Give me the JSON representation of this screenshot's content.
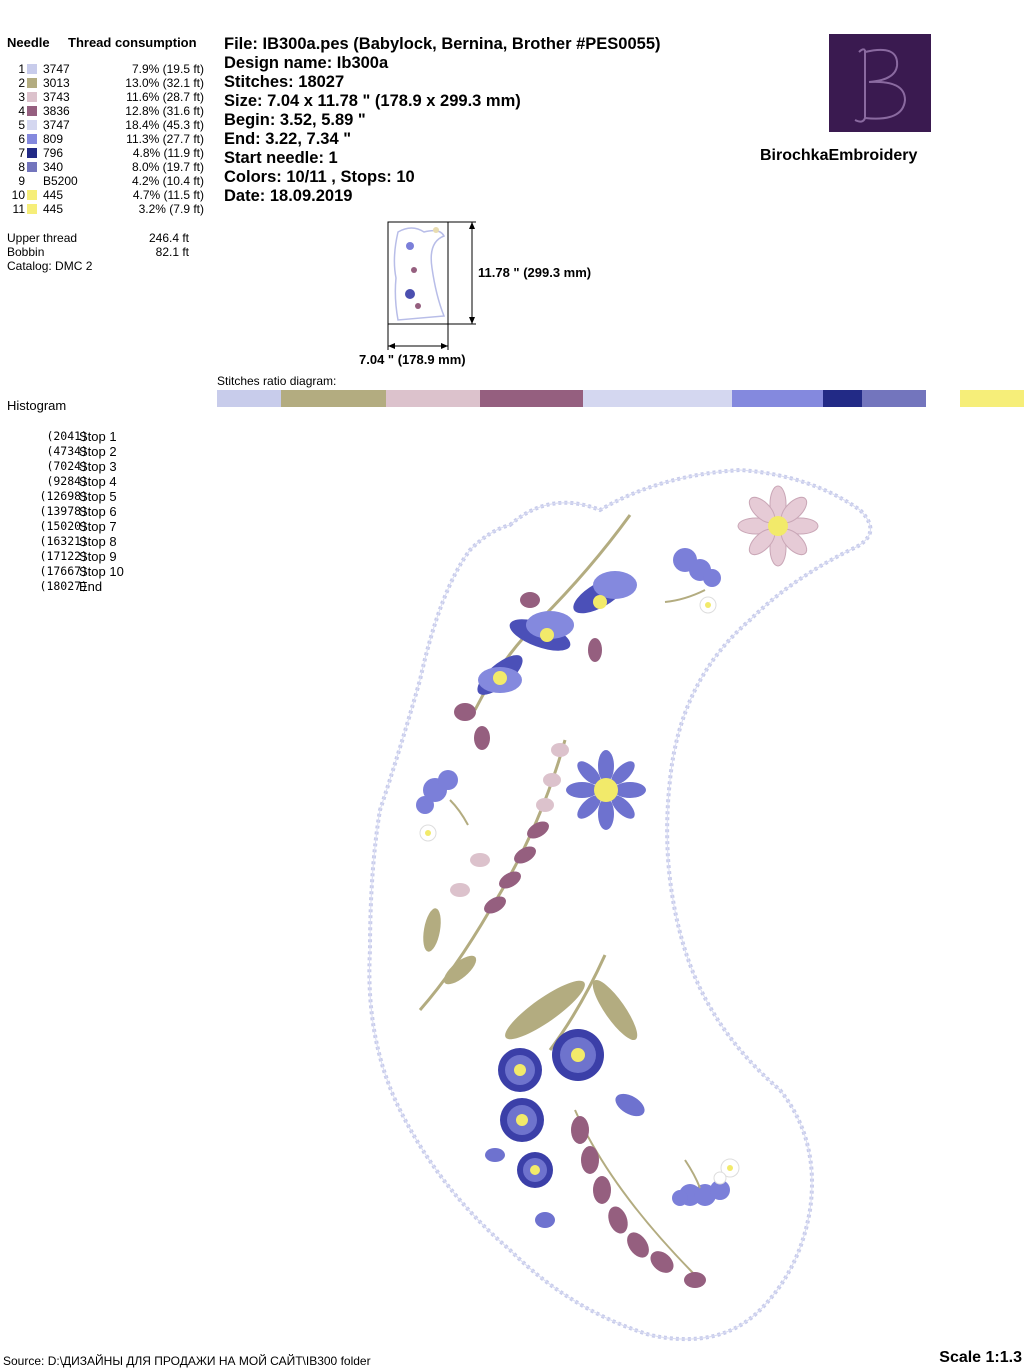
{
  "needles_header": {
    "needle": "Needle",
    "thread": "Thread consumption"
  },
  "needles": [
    {
      "n": "1",
      "color": "#c8cceb",
      "code": "3747",
      "pct": "7.9% (19.5 ft)"
    },
    {
      "n": "2",
      "color": "#b3ac80",
      "code": "3013",
      "pct": "13.0% (32.1 ft)"
    },
    {
      "n": "3",
      "color": "#dcc2cc",
      "code": "3743",
      "pct": "11.6% (28.7 ft)"
    },
    {
      "n": "4",
      "color": "#955f7f",
      "code": "3836",
      "pct": "12.8% (31.6 ft)"
    },
    {
      "n": "5",
      "color": "#d4d7f0",
      "code": "3747",
      "pct": "18.4% (45.3 ft)"
    },
    {
      "n": "6",
      "color": "#8489de",
      "code": "809",
      "pct": "11.3% (27.7 ft)"
    },
    {
      "n": "7",
      "color": "#222a86",
      "code": "796",
      "pct": "4.8% (11.9 ft)"
    },
    {
      "n": "8",
      "color": "#7375bd",
      "code": "340",
      "pct": "8.0% (19.7 ft)"
    },
    {
      "n": "9",
      "color": "#ffffff",
      "code": "B5200",
      "pct": "4.2% (10.4 ft)"
    },
    {
      "n": "10",
      "color": "#f6ee79",
      "code": "445",
      "pct": "4.7% (11.5 ft)"
    },
    {
      "n": "11",
      "color": "#f6ee79",
      "code": "445",
      "pct": "3.2% (7.9 ft)"
    }
  ],
  "thread_summary": {
    "upper_label": "Upper thread",
    "upper_value": "246.4 ft",
    "bobbin_label": "Bobbin",
    "bobbin_value": "82.1 ft",
    "catalog": "Catalog: DMC 2"
  },
  "info": {
    "file": "File: IB300a.pes  (Babylock, Bernina, Brother #PES0055)",
    "design": "Design name: Ib300a",
    "stitches": "Stitches: 18027",
    "size": "Size: 7.04 x 11.78 \" (178.9 x 299.3 mm)",
    "begin": "Begin: 3.52, 5.89 \"",
    "end": "End: 3.22, 7.34 \"",
    "start": "Start needle: 1",
    "colors": "Colors: 10/11 , Stops: 10",
    "date": "Date: 18.09.2019"
  },
  "brand": "BirochkaEmbroidery",
  "logo_letter": "B",
  "dims": {
    "height": "11.78 \" (299.3 mm)",
    "width": "7.04 \" (178.9 mm)"
  },
  "ratio_label": "Stitches ratio diagram:",
  "ratio": [
    {
      "color": "#c8cceb",
      "value": 7.9
    },
    {
      "color": "#b3ac80",
      "value": 13.0
    },
    {
      "color": "#dcc2cc",
      "value": 11.6
    },
    {
      "color": "#955f7f",
      "value": 12.8
    },
    {
      "color": "#d4d7f0",
      "value": 18.4
    },
    {
      "color": "#8489de",
      "value": 11.3
    },
    {
      "color": "#222a86",
      "value": 4.8
    },
    {
      "color": "#7375bd",
      "value": 8.0
    },
    {
      "color": "#ffffff",
      "value": 4.2
    },
    {
      "color": "#f6ee79",
      "value": 4.7
    },
    {
      "color": "#f6ee79",
      "value": 3.2
    }
  ],
  "histogram_title": "Histogram",
  "stops": [
    {
      "count": "(2041)",
      "label": "Stop 1"
    },
    {
      "count": "(4734)",
      "label": "Stop 2"
    },
    {
      "count": "(7024)",
      "label": "Stop 3"
    },
    {
      "count": "(9284)",
      "label": "Stop 4"
    },
    {
      "count": "(12698)",
      "label": "Stop 5"
    },
    {
      "count": "(13978)",
      "label": "Stop 6"
    },
    {
      "count": "(15020)",
      "label": "Stop 7"
    },
    {
      "count": "(16321)",
      "label": "Stop 8"
    },
    {
      "count": "(17122)",
      "label": "Stop 9"
    },
    {
      "count": "(17667)",
      "label": "Stop 10"
    },
    {
      "count": "(18027)",
      "label": "End"
    }
  ],
  "footer": "Source: D:\\ДИЗАЙНЫ ДЛЯ ПРОДАЖИ НА МОЙ САЙТ\\IB300 folder",
  "scale": "Scale 1:1.3"
}
